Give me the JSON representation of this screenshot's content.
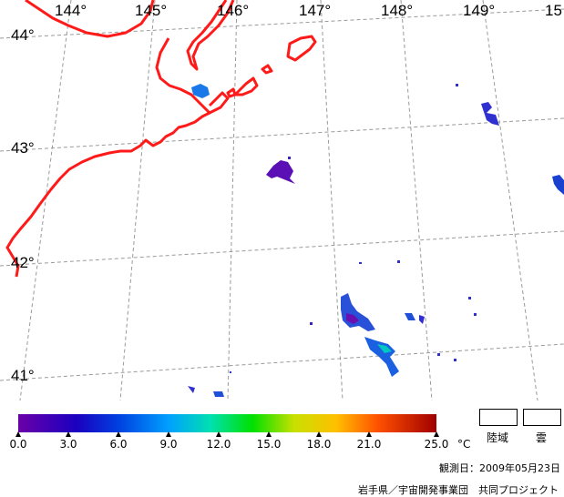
{
  "map": {
    "lon_labels": [
      "144°",
      "145°",
      "146°",
      "147°",
      "148°",
      "149°",
      "15"
    ],
    "lat_labels": [
      "44°",
      "43°",
      "42°",
      "41°"
    ]
  },
  "colors": {
    "coastline": "#ff1a1a",
    "grid": "#9a9a9a",
    "scale": [
      "#6a00a8",
      "#0000c8",
      "#0080ff",
      "#00e0c0",
      "#00e000",
      "#d8e000",
      "#ff9000",
      "#ff3000",
      "#a00000"
    ]
  },
  "legend": {
    "ticks": [
      "0.0",
      "3.0",
      "6.0",
      "9.0",
      "12.0",
      "15.0",
      "18.0",
      "21.0",
      "25.0"
    ],
    "unit": "°C",
    "land_label": "陸域",
    "cloud_label": "雲"
  },
  "footer": {
    "date": "観測日：2009年05月23日",
    "credit": "岩手県／宇宙開発事業団　共同プロジェクト"
  }
}
